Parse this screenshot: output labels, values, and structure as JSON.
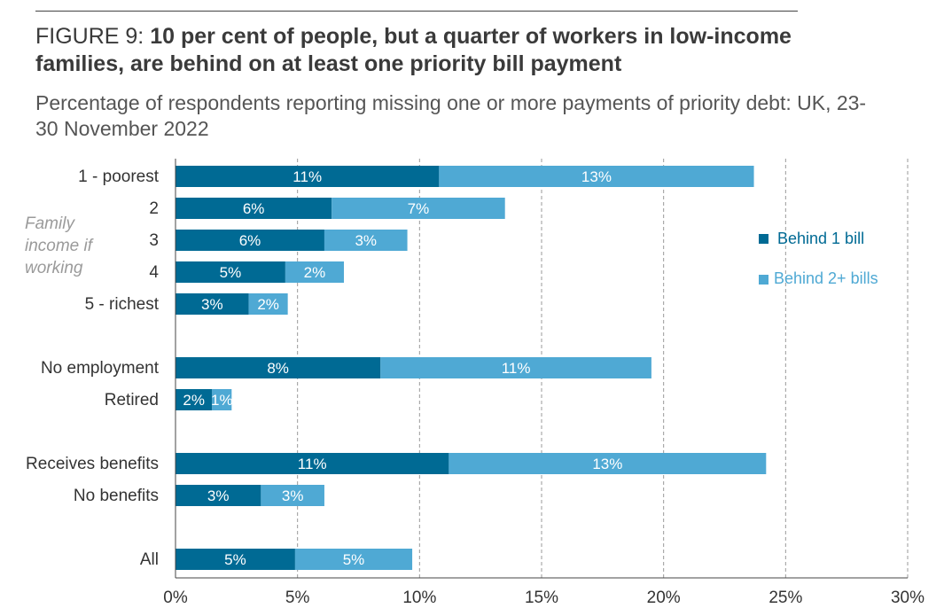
{
  "header": {
    "figure_label": "FIGURE 9:",
    "title_bold": "10 per cent of people, but a quarter of workers in low-income families, are behind on at least one priority bill payment",
    "subtitle": "Percentage of respondents reporting missing one or more payments of priority debt: UK, 23-30 November 2022"
  },
  "group_label": "Family income if working",
  "colors": {
    "behind_1": "#006a94",
    "behind_2plus": "#4fa9d4",
    "grid": "#999999",
    "axis": "#444444"
  },
  "chart_data": {
    "type": "bar",
    "orientation": "horizontal",
    "stacked": true,
    "title": "10 per cent of people, but a quarter of workers in low-income families, are behind on at least one priority bill payment",
    "categories": [
      "1 - poorest",
      "2",
      "3",
      "4",
      "5 - richest",
      "No employment",
      "Retired",
      "Receives benefits",
      "No benefits",
      "All"
    ],
    "category_group": [
      0,
      0,
      0,
      0,
      0,
      1,
      1,
      2,
      2,
      3
    ],
    "series": [
      {
        "name": "Behind 1 bill",
        "color": "#006a94",
        "values": [
          10.8,
          6.4,
          6.1,
          4.5,
          3.0,
          8.4,
          1.5,
          11.2,
          3.5,
          4.9
        ],
        "labels": [
          "11%",
          "6%",
          "6%",
          "5%",
          "3%",
          "8%",
          "2%",
          "11%",
          "3%",
          "5%"
        ]
      },
      {
        "name": "Behind 2+ bills",
        "color": "#4fa9d4",
        "values": [
          12.9,
          7.1,
          3.4,
          2.4,
          1.6,
          11.1,
          0.8,
          13.0,
          2.6,
          4.8
        ],
        "labels": [
          "13%",
          "7%",
          "3%",
          "2%",
          "2%",
          "11%",
          "1%",
          "13%",
          "3%",
          "5%"
        ]
      }
    ],
    "xlim": [
      0,
      30
    ],
    "xticks": [
      0,
      5,
      10,
      15,
      20,
      25,
      30
    ],
    "xtick_labels": [
      "0%",
      "5%",
      "10%",
      "15%",
      "20%",
      "25%",
      "30%"
    ],
    "grid": "vertical dashed",
    "legend_position": "right"
  }
}
